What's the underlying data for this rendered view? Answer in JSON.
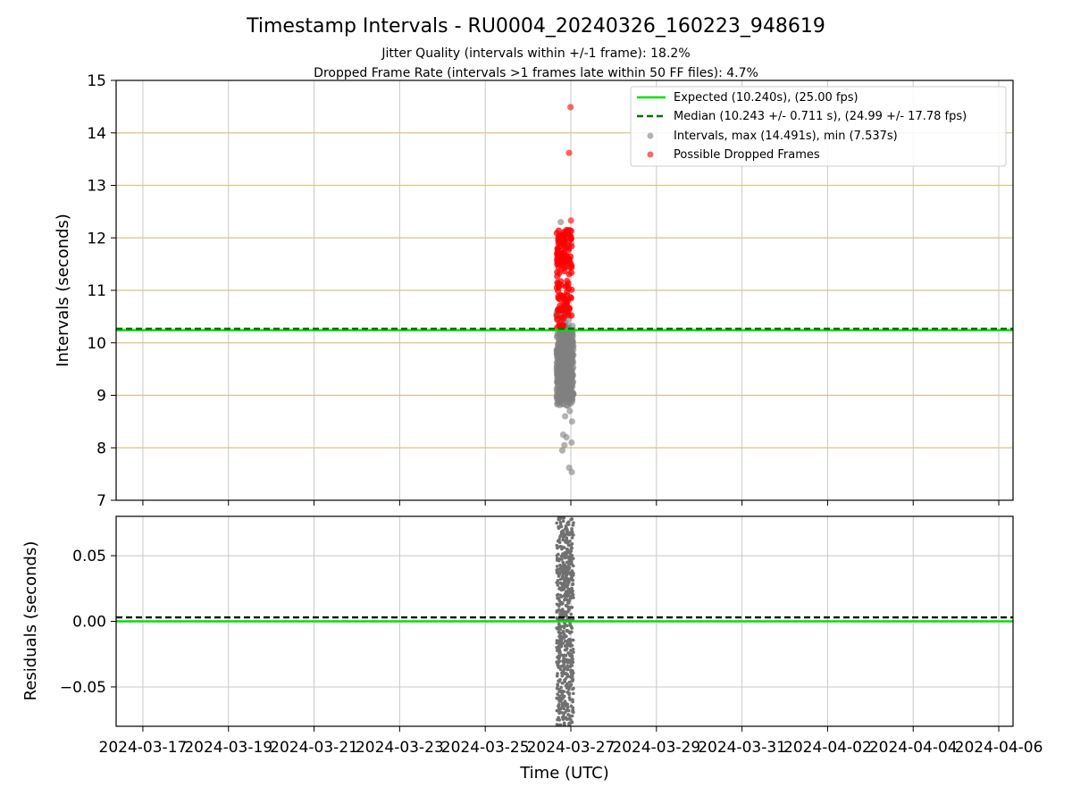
{
  "chart_data": {
    "type": "scatter",
    "title": "Timestamp Intervals - RU0004_20240326_160223_948619",
    "subtitles": [
      "Jitter Quality (intervals within +/-1 frame): 18.2%",
      "Dropped Frame Rate (intervals >1 frames late within 50 FF files): 4.7%"
    ],
    "xlabel": "Time (UTC)",
    "x_tick_labels": [
      "2024-03-17",
      "2024-03-19",
      "2024-03-21",
      "2024-03-23",
      "2024-03-25",
      "2024-03-27",
      "2024-03-29",
      "2024-03-31",
      "2024-04-02",
      "2024-04-04",
      "2024-04-06"
    ],
    "x_range": [
      "2024-03-16 09:00",
      "2024-04-06 08:00"
    ],
    "top_panel": {
      "ylabel": "Intervals (seconds)",
      "ylim": [
        7,
        15
      ],
      "y_ticks": [
        "7",
        "8",
        "9",
        "10",
        "11",
        "12",
        "13",
        "14",
        "15"
      ],
      "expected_interval": 10.24,
      "median_interval": 10.243,
      "grid": "horizontal lines at y ticks, vertical lines at x ticks",
      "legend_position": "top-right",
      "legend": [
        {
          "label": "Expected (10.240s), (25.00 fps)",
          "style": "solid line",
          "color": "#00e000"
        },
        {
          "label": "Median (10.243 +/- 0.711 s), (24.99 +/- 17.78 fps)",
          "style": "dashed line",
          "color": "#007000"
        },
        {
          "label": "Intervals, max (14.491s), min (7.537s)",
          "style": "marker",
          "color": "#808080"
        },
        {
          "label": "Possible Dropped Frames",
          "style": "marker",
          "color": "#ff0000"
        }
      ],
      "series": [
        {
          "name": "Intervals, max (14.491s), min (7.537s)",
          "color": "#808080",
          "time_range": [
            "2024-03-26 16:02",
            "2024-03-27 01:30"
          ],
          "y_max": 14.491,
          "y_min": 7.537,
          "y_core_range": [
            8.8,
            11.7
          ]
        },
        {
          "name": "Possible Dropped Frames",
          "color": "#ff0000",
          "time_range": [
            "2024-03-26 16:02",
            "2024-03-27 00:30"
          ],
          "y_range": [
            10.25,
            12.35
          ],
          "outliers": [
            {
              "x": "2024-03-26 23:50",
              "y": 14.49
            },
            {
              "x": "2024-03-26 23:00",
              "y": 13.62
            },
            {
              "x": "2024-03-27 00:05",
              "y": 12.33
            }
          ]
        }
      ]
    },
    "bottom_panel": {
      "ylabel": "Residuals (seconds)",
      "ylim": [
        -0.08,
        0.08
      ],
      "y_ticks": [
        "0.05",
        "0.00",
        "−0.05"
      ],
      "expected_residual": 0.0,
      "median_residual": 0.003,
      "grid": "both axes",
      "series": [
        {
          "name": "Residuals",
          "color": "#707070",
          "time_range": [
            "2024-03-26 16:02",
            "2024-03-27 01:30"
          ],
          "y_range": [
            -0.08,
            0.08
          ]
        }
      ]
    }
  }
}
